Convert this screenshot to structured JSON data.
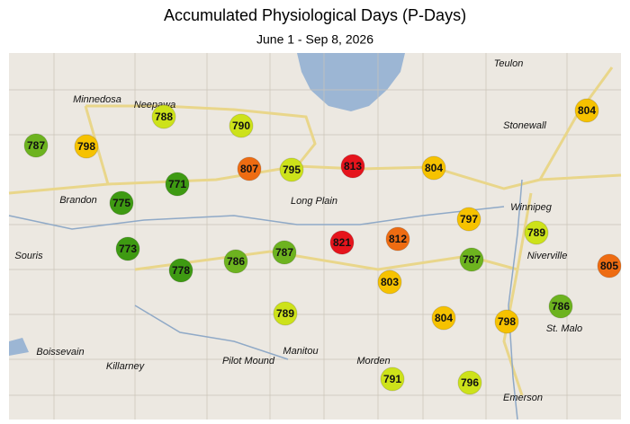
{
  "header": {
    "title": "Accumulated Physiological Days (P-Days)",
    "subtitle": "June 1 - Sep 8, 2026"
  },
  "towns": [
    "Teulon",
    "Minnedosa",
    "Neepawa",
    "Stonewall",
    "Winnipeg",
    "Brandon",
    "Long Plain",
    "Souris",
    "Niverville",
    "St. Malo",
    "Boissevain",
    "Killarney",
    "Pilot Mound",
    "Manitou",
    "Morden",
    "Emerson"
  ],
  "markers": [
    {
      "value": 787,
      "color": "#6db31f"
    },
    {
      "value": 798,
      "color": "#f6c200"
    },
    {
      "value": 788,
      "color": "#cde21a"
    },
    {
      "value": 790,
      "color": "#cde21a"
    },
    {
      "value": 807,
      "color": "#ee6c12"
    },
    {
      "value": 795,
      "color": "#cde21a"
    },
    {
      "value": 813,
      "color": "#e5141c"
    },
    {
      "value": 804,
      "color": "#f6c200"
    },
    {
      "value": 804,
      "color": "#f6c200"
    },
    {
      "value": 771,
      "color": "#3e9a12"
    },
    {
      "value": 775,
      "color": "#3e9a12"
    },
    {
      "value": 797,
      "color": "#f6c200"
    },
    {
      "value": 789,
      "color": "#cde21a"
    },
    {
      "value": 821,
      "color": "#e5141c"
    },
    {
      "value": 812,
      "color": "#ee6c12"
    },
    {
      "value": 773,
      "color": "#3e9a12"
    },
    {
      "value": 778,
      "color": "#3e9a12"
    },
    {
      "value": 786,
      "color": "#6db31f"
    },
    {
      "value": 787,
      "color": "#6db31f"
    },
    {
      "value": 787,
      "color": "#6db31f"
    },
    {
      "value": 805,
      "color": "#ee6c12"
    },
    {
      "value": 803,
      "color": "#f6c200"
    },
    {
      "value": 789,
      "color": "#cde21a"
    },
    {
      "value": 804,
      "color": "#f6c200"
    },
    {
      "value": 798,
      "color": "#f6c200"
    },
    {
      "value": 786,
      "color": "#6db31f"
    },
    {
      "value": 791,
      "color": "#cde21a"
    },
    {
      "value": 796,
      "color": "#cde21a"
    }
  ]
}
